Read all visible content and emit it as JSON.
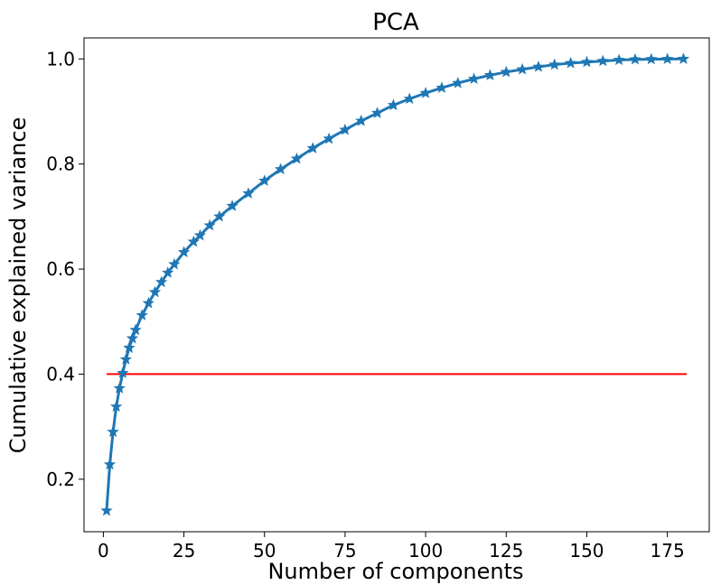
{
  "chart_data": {
    "type": "line",
    "title": "PCA",
    "xlabel": "Number of components",
    "ylabel": "Cumulative explained variance",
    "xlim": [
      -6,
      188
    ],
    "ylim": [
      0.1,
      1.04
    ],
    "xticks": [
      0,
      25,
      50,
      75,
      100,
      125,
      150,
      175
    ],
    "yticks": [
      0.2,
      0.4,
      0.6,
      0.8,
      1.0
    ],
    "xtick_labels": [
      "0",
      "25",
      "50",
      "75",
      "100",
      "125",
      "150",
      "175"
    ],
    "ytick_labels": [
      "0.2",
      "0.4",
      "0.6",
      "0.8",
      "1.0"
    ],
    "grid": false,
    "legend": "none",
    "series_color": "#1f77b4",
    "marker": "star",
    "series": [
      {
        "x": [
          1,
          2,
          3,
          4,
          5,
          6,
          7,
          8,
          9,
          10,
          12,
          14,
          16,
          18,
          20,
          22,
          25,
          28,
          30,
          33,
          36,
          40,
          45,
          50,
          55,
          60,
          65,
          70,
          75,
          80,
          85,
          90,
          95,
          100,
          105,
          110,
          115,
          120,
          125,
          130,
          135,
          140,
          145,
          150,
          155,
          160,
          165,
          170,
          175,
          180
        ],
        "y": [
          0.14,
          0.228,
          0.29,
          0.338,
          0.373,
          0.402,
          0.428,
          0.45,
          0.468,
          0.484,
          0.512,
          0.535,
          0.556,
          0.575,
          0.593,
          0.609,
          0.632,
          0.652,
          0.664,
          0.683,
          0.7,
          0.72,
          0.744,
          0.768,
          0.79,
          0.81,
          0.83,
          0.848,
          0.865,
          0.882,
          0.897,
          0.912,
          0.924,
          0.935,
          0.945,
          0.954,
          0.962,
          0.969,
          0.975,
          0.98,
          0.985,
          0.989,
          0.992,
          0.994,
          0.996,
          0.998,
          0.999,
          0.9995,
          0.9998,
          1.0
        ]
      }
    ],
    "hline": {
      "y": 0.4,
      "xmin": 1,
      "xmax": 181,
      "color": "#ff0000"
    }
  }
}
